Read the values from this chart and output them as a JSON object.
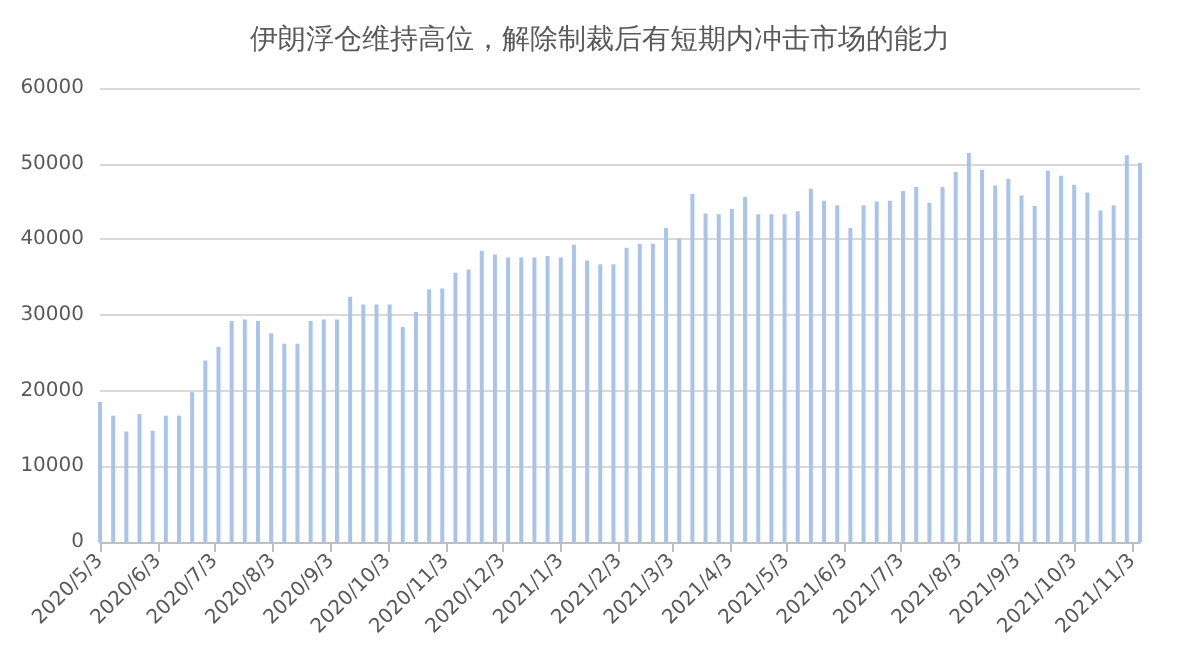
{
  "chart_data": {
    "type": "bar",
    "title": "伊朗浮仓维持高位，解除制裁后有短期内冲击市场的能力",
    "x": [
      "2020-05-03",
      "2020-05-10",
      "2020-05-17",
      "2020-05-24",
      "2020-05-31",
      "2020-06-07",
      "2020-06-14",
      "2020-06-21",
      "2020-06-28",
      "2020-07-05",
      "2020-07-12",
      "2020-07-19",
      "2020-07-26",
      "2020-08-02",
      "2020-08-09",
      "2020-08-16",
      "2020-08-23",
      "2020-08-30",
      "2020-09-06",
      "2020-09-13",
      "2020-09-20",
      "2020-09-27",
      "2020-10-04",
      "2020-10-11",
      "2020-10-18",
      "2020-10-25",
      "2020-11-01",
      "2020-11-08",
      "2020-11-15",
      "2020-11-22",
      "2020-11-29",
      "2020-12-06",
      "2020-12-13",
      "2020-12-20",
      "2020-12-27",
      "2021-01-03",
      "2021-01-10",
      "2021-01-17",
      "2021-01-24",
      "2021-01-31",
      "2021-02-07",
      "2021-02-14",
      "2021-02-21",
      "2021-02-28",
      "2021-03-07",
      "2021-03-14",
      "2021-03-21",
      "2021-03-28",
      "2021-04-04",
      "2021-04-11",
      "2021-04-18",
      "2021-04-25",
      "2021-05-02",
      "2021-05-09",
      "2021-05-16",
      "2021-05-23",
      "2021-05-30",
      "2021-06-06",
      "2021-06-13",
      "2021-06-20",
      "2021-06-27",
      "2021-07-04",
      "2021-07-11",
      "2021-07-18",
      "2021-07-25",
      "2021-08-01",
      "2021-08-08",
      "2021-08-15",
      "2021-08-22",
      "2021-08-29",
      "2021-09-05",
      "2021-09-12",
      "2021-09-19",
      "2021-09-26",
      "2021-10-03",
      "2021-10-10",
      "2021-10-17",
      "2021-10-24",
      "2021-10-31",
      "2021-11-07"
    ],
    "values": [
      18500,
      16700,
      14600,
      16900,
      14700,
      16700,
      16700,
      19800,
      24000,
      25800,
      29200,
      29400,
      29200,
      27600,
      26200,
      26200,
      29200,
      29400,
      29400,
      32400,
      31400,
      31400,
      31400,
      28400,
      30400,
      33400,
      33500,
      35600,
      36000,
      38500,
      38000,
      37600,
      37600,
      37600,
      37800,
      37600,
      39300,
      37200,
      36700,
      36700,
      38900,
      39400,
      39400,
      41500,
      40100,
      46000,
      43400,
      43300,
      44000,
      45600,
      43300,
      43300,
      43300,
      43700,
      46700,
      45100,
      44500,
      41500,
      44500,
      45000,
      45100,
      46400,
      46900,
      44800,
      46900,
      48900,
      51400,
      49200,
      47100,
      48000,
      45800,
      44400,
      49100,
      48400,
      47200,
      46200,
      43800,
      44500,
      51100,
      50100
    ],
    "color": "#a9c4eb",
    "xlim": [
      "2020-05-03",
      "2021-11-07"
    ],
    "xticks": [
      {
        "value": "2020-05-03",
        "label": "2020/5/3"
      },
      {
        "value": "2020-06-03",
        "label": "2020/6/3"
      },
      {
        "value": "2020-07-03",
        "label": "2020/7/3"
      },
      {
        "value": "2020-08-03",
        "label": "2020/8/3"
      },
      {
        "value": "2020-09-03",
        "label": "2020/9/3"
      },
      {
        "value": "2020-10-03",
        "label": "2020/10/3"
      },
      {
        "value": "2020-11-03",
        "label": "2020/11/3"
      },
      {
        "value": "2020-12-03",
        "label": "2020/12/3"
      },
      {
        "value": "2021-01-03",
        "label": "2021/1/3"
      },
      {
        "value": "2021-02-03",
        "label": "2021/2/3"
      },
      {
        "value": "2021-03-03",
        "label": "2021/3/3"
      },
      {
        "value": "2021-04-03",
        "label": "2021/4/3"
      },
      {
        "value": "2021-05-03",
        "label": "2021/5/3"
      },
      {
        "value": "2021-06-03",
        "label": "2021/6/3"
      },
      {
        "value": "2021-07-03",
        "label": "2021/7/3"
      },
      {
        "value": "2021-08-03",
        "label": "2021/8/3"
      },
      {
        "value": "2021-09-03",
        "label": "2021/9/3"
      },
      {
        "value": "2021-10-03",
        "label": "2021/10/3"
      },
      {
        "value": "2021-11-03",
        "label": "2021/11/3"
      }
    ],
    "ylim": [
      0,
      60000
    ],
    "yticks": [
      0,
      10000,
      20000,
      30000,
      40000,
      50000,
      60000
    ],
    "grid": "y"
  }
}
